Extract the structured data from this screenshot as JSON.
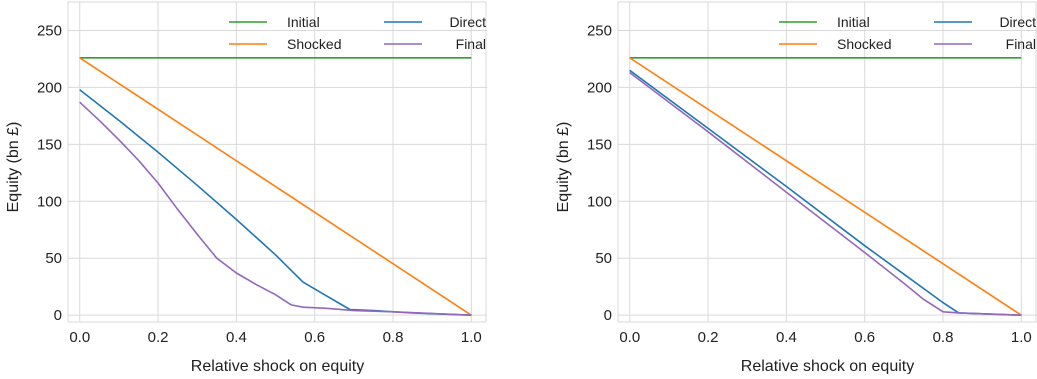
{
  "chart_data": [
    {
      "type": "line",
      "title": "",
      "xlabel": "Relative shock on equity",
      "ylabel": "Equity (bn £)",
      "xlim": [
        -0.03,
        1.04
      ],
      "ylim": [
        -6,
        275
      ],
      "xticks": [
        0.0,
        0.2,
        0.4,
        0.6,
        0.8,
        1.0
      ],
      "xtick_labels": [
        "0.0",
        "0.2",
        "0.4",
        "0.6",
        "0.8",
        "1.0"
      ],
      "yticks": [
        0,
        50,
        100,
        150,
        200,
        250
      ],
      "ytick_labels": [
        "0",
        "50",
        "100",
        "150",
        "200",
        "250"
      ],
      "grid": true,
      "legend": "top-right",
      "series": [
        {
          "name": "Initial",
          "color": "#2ca02c",
          "x": [
            0.0,
            1.0
          ],
          "y": [
            226,
            226
          ]
        },
        {
          "name": "Shocked",
          "color": "#ff7f0e",
          "x": [
            0.0,
            1.0
          ],
          "y": [
            226,
            0
          ]
        },
        {
          "name": "Direct",
          "color": "#1f77b4",
          "x": [
            0.0,
            0.1,
            0.2,
            0.3,
            0.4,
            0.5,
            0.57,
            0.63,
            0.69,
            0.75,
            0.85,
            1.0
          ],
          "y": [
            198,
            171,
            143,
            114,
            84,
            53,
            29,
            17,
            5,
            4,
            2,
            0
          ]
        },
        {
          "name": "Final",
          "color": "#9467bd",
          "x": [
            0.0,
            0.05,
            0.1,
            0.15,
            0.2,
            0.25,
            0.3,
            0.35,
            0.4,
            0.45,
            0.5,
            0.54,
            0.57,
            0.63,
            0.7,
            0.8,
            1.0
          ],
          "y": [
            187,
            171,
            154,
            136,
            116,
            93,
            71,
            50,
            37,
            27,
            18,
            9,
            7,
            6,
            4,
            3,
            0
          ]
        }
      ]
    },
    {
      "type": "line",
      "title": "",
      "xlabel": "Relative shock on equity",
      "ylabel": "Equity (bn £)",
      "xlim": [
        -0.03,
        1.04
      ],
      "ylim": [
        -6,
        275
      ],
      "xticks": [
        0.0,
        0.2,
        0.4,
        0.6,
        0.8,
        1.0
      ],
      "xtick_labels": [
        "0.0",
        "0.2",
        "0.4",
        "0.6",
        "0.8",
        "1.0"
      ],
      "yticks": [
        0,
        50,
        100,
        150,
        200,
        250
      ],
      "ytick_labels": [
        "0",
        "50",
        "100",
        "150",
        "200",
        "250"
      ],
      "grid": true,
      "legend": "top-right",
      "series": [
        {
          "name": "Initial",
          "color": "#2ca02c",
          "x": [
            0.0,
            1.0
          ],
          "y": [
            226,
            226
          ]
        },
        {
          "name": "Shocked",
          "color": "#ff7f0e",
          "x": [
            0.0,
            1.0
          ],
          "y": [
            226,
            0
          ]
        },
        {
          "name": "Direct",
          "color": "#1f77b4",
          "x": [
            0.0,
            0.2,
            0.4,
            0.6,
            0.7,
            0.8,
            0.84,
            1.0
          ],
          "y": [
            215,
            164,
            113,
            61,
            36,
            11,
            2,
            0
          ]
        },
        {
          "name": "Final",
          "color": "#9467bd",
          "x": [
            0.0,
            0.2,
            0.4,
            0.6,
            0.7,
            0.75,
            0.8,
            0.84,
            1.0
          ],
          "y": [
            213,
            161,
            108,
            55,
            28,
            14,
            3,
            2,
            0
          ]
        }
      ]
    }
  ]
}
